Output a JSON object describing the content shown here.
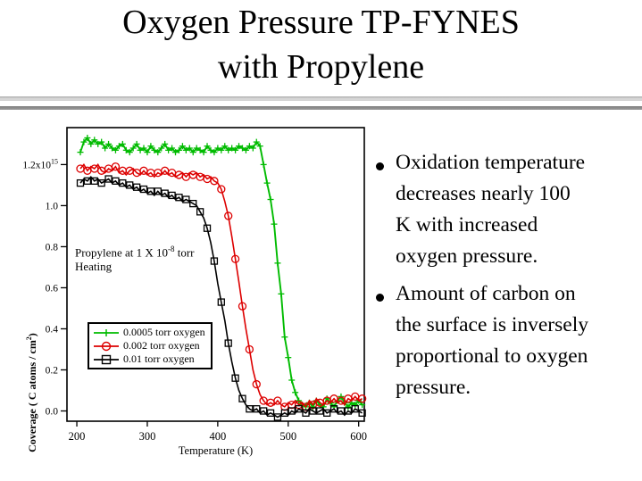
{
  "slide": {
    "title_line1": "Oxygen Pressure TP-FYNES",
    "title_line2": "with Propylene"
  },
  "bullets": [
    {
      "text": "Oxidation temperature\ndecreases nearly 100\nK with increased\noxygen pressure."
    },
    {
      "text": "Amount of carbon on\nthe surface is inversely\nproportional to oxygen\npressure."
    }
  ],
  "chart_data": {
    "type": "line",
    "xlabel": "Temperature (K)",
    "ylabel_base": "Coverage ( C atoms / cm",
    "ylabel_sup": "2",
    "ylabel_close": ")",
    "annotation_line1_base": "Propylene at 1 X 10",
    "annotation_line1_sup": "-8",
    "annotation_line1_tail": " torr",
    "annotation_line2": "Heating",
    "xlim": [
      186,
      608
    ],
    "ylim": [
      -0.05,
      1.38
    ],
    "x_ticks": [
      200,
      300,
      400,
      500,
      600
    ],
    "y_ticks": [
      0.0,
      0.2,
      0.4,
      0.6,
      0.8,
      1.0,
      1.2
    ],
    "y_top_tick_base": "1.2x10",
    "y_top_tick_sup": "15",
    "y_unit_scale": "1e15",
    "grid": false,
    "legend_position": "middle-left",
    "series": [
      {
        "name": "0.0005 torr oxygen",
        "color": "#00bb00",
        "marker": "plus",
        "marker_every": 1,
        "points": [
          [
            205,
            1.26
          ],
          [
            210,
            1.31
          ],
          [
            215,
            1.33
          ],
          [
            220,
            1.3
          ],
          [
            225,
            1.32
          ],
          [
            230,
            1.3
          ],
          [
            235,
            1.31
          ],
          [
            240,
            1.28
          ],
          [
            245,
            1.3
          ],
          [
            250,
            1.28
          ],
          [
            255,
            1.27
          ],
          [
            260,
            1.29
          ],
          [
            265,
            1.3
          ],
          [
            270,
            1.27
          ],
          [
            275,
            1.26
          ],
          [
            280,
            1.28
          ],
          [
            285,
            1.3
          ],
          [
            290,
            1.27
          ],
          [
            295,
            1.28
          ],
          [
            300,
            1.26
          ],
          [
            305,
            1.29
          ],
          [
            310,
            1.27
          ],
          [
            315,
            1.26
          ],
          [
            320,
            1.28
          ],
          [
            325,
            1.3
          ],
          [
            330,
            1.27
          ],
          [
            335,
            1.28
          ],
          [
            340,
            1.26
          ],
          [
            345,
            1.27
          ],
          [
            350,
            1.29
          ],
          [
            355,
            1.27
          ],
          [
            360,
            1.28
          ],
          [
            365,
            1.26
          ],
          [
            370,
            1.28
          ],
          [
            375,
            1.27
          ],
          [
            380,
            1.26
          ],
          [
            385,
            1.29
          ],
          [
            390,
            1.27
          ],
          [
            395,
            1.26
          ],
          [
            400,
            1.28
          ],
          [
            405,
            1.27
          ],
          [
            410,
            1.29
          ],
          [
            415,
            1.27
          ],
          [
            420,
            1.28
          ],
          [
            425,
            1.27
          ],
          [
            430,
            1.29
          ],
          [
            435,
            1.28
          ],
          [
            440,
            1.27
          ],
          [
            445,
            1.29
          ],
          [
            450,
            1.28
          ],
          [
            455,
            1.31
          ],
          [
            460,
            1.29
          ],
          [
            465,
            1.2
          ],
          [
            470,
            1.11
          ],
          [
            475,
            1.03
          ],
          [
            480,
            0.91
          ],
          [
            485,
            0.72
          ],
          [
            490,
            0.57
          ],
          [
            495,
            0.36
          ],
          [
            500,
            0.26
          ],
          [
            505,
            0.15
          ],
          [
            510,
            0.09
          ],
          [
            515,
            0.05
          ],
          [
            520,
            0.03
          ],
          [
            525,
            0.02
          ],
          [
            530,
            0.04
          ],
          [
            535,
            0.02
          ],
          [
            540,
            0.05
          ],
          [
            545,
            0.03
          ],
          [
            550,
            0.02
          ],
          [
            555,
            0.06
          ],
          [
            560,
            0.04
          ],
          [
            565,
            0.02
          ],
          [
            570,
            0.05
          ],
          [
            575,
            0.07
          ],
          [
            580,
            0.04
          ],
          [
            585,
            0.02
          ],
          [
            590,
            0.04
          ],
          [
            595,
            0.03
          ],
          [
            600,
            0.05
          ],
          [
            605,
            0.03
          ]
        ]
      },
      {
        "name": "0.002 torr oxygen",
        "color": "#dd0000",
        "marker": "circle",
        "marker_every": 2,
        "points": [
          [
            205,
            1.18
          ],
          [
            210,
            1.2
          ],
          [
            215,
            1.17
          ],
          [
            220,
            1.19
          ],
          [
            225,
            1.18
          ],
          [
            230,
            1.2
          ],
          [
            235,
            1.17
          ],
          [
            240,
            1.16
          ],
          [
            245,
            1.18
          ],
          [
            250,
            1.17
          ],
          [
            255,
            1.19
          ],
          [
            260,
            1.16
          ],
          [
            265,
            1.17
          ],
          [
            270,
            1.15
          ],
          [
            275,
            1.17
          ],
          [
            280,
            1.18
          ],
          [
            285,
            1.16
          ],
          [
            290,
            1.15
          ],
          [
            295,
            1.17
          ],
          [
            300,
            1.15
          ],
          [
            305,
            1.16
          ],
          [
            310,
            1.14
          ],
          [
            315,
            1.16
          ],
          [
            320,
            1.15
          ],
          [
            325,
            1.17
          ],
          [
            330,
            1.15
          ],
          [
            335,
            1.16
          ],
          [
            340,
            1.14
          ],
          [
            345,
            1.15
          ],
          [
            350,
            1.16
          ],
          [
            355,
            1.14
          ],
          [
            360,
            1.16
          ],
          [
            365,
            1.15
          ],
          [
            370,
            1.16
          ],
          [
            375,
            1.14
          ],
          [
            380,
            1.15
          ],
          [
            385,
            1.13
          ],
          [
            390,
            1.14
          ],
          [
            395,
            1.12
          ],
          [
            400,
            1.11
          ],
          [
            405,
            1.08
          ],
          [
            410,
            1.02
          ],
          [
            415,
            0.95
          ],
          [
            420,
            0.85
          ],
          [
            425,
            0.74
          ],
          [
            430,
            0.63
          ],
          [
            435,
            0.51
          ],
          [
            440,
            0.4
          ],
          [
            445,
            0.3
          ],
          [
            450,
            0.2
          ],
          [
            455,
            0.13
          ],
          [
            460,
            0.08
          ],
          [
            465,
            0.05
          ],
          [
            470,
            0.03
          ],
          [
            475,
            0.04
          ],
          [
            480,
            0.03
          ],
          [
            485,
            0.05
          ],
          [
            490,
            0.03
          ],
          [
            495,
            0.02
          ],
          [
            500,
            0.04
          ],
          [
            505,
            0.03
          ],
          [
            510,
            0.05
          ],
          [
            515,
            0.03
          ],
          [
            520,
            0.04
          ],
          [
            525,
            0.02
          ],
          [
            530,
            0.05
          ],
          [
            535,
            0.03
          ],
          [
            540,
            0.06
          ],
          [
            545,
            0.04
          ],
          [
            550,
            0.03
          ],
          [
            555,
            0.05
          ],
          [
            560,
            0.04
          ],
          [
            565,
            0.06
          ],
          [
            570,
            0.04
          ],
          [
            575,
            0.05
          ],
          [
            580,
            0.03
          ],
          [
            585,
            0.06
          ],
          [
            590,
            0.05
          ],
          [
            595,
            0.07
          ],
          [
            600,
            0.05
          ],
          [
            605,
            0.06
          ]
        ]
      },
      {
        "name": "0.01 torr oxygen",
        "color": "#000000",
        "marker": "square",
        "marker_every": 2,
        "points": [
          [
            205,
            1.11
          ],
          [
            210,
            1.13
          ],
          [
            215,
            1.12
          ],
          [
            220,
            1.14
          ],
          [
            225,
            1.12
          ],
          [
            230,
            1.13
          ],
          [
            235,
            1.11
          ],
          [
            240,
            1.12
          ],
          [
            245,
            1.13
          ],
          [
            250,
            1.11
          ],
          [
            255,
            1.12
          ],
          [
            260,
            1.1
          ],
          [
            265,
            1.11
          ],
          [
            270,
            1.09
          ],
          [
            275,
            1.1
          ],
          [
            280,
            1.08
          ],
          [
            285,
            1.09
          ],
          [
            290,
            1.07
          ],
          [
            295,
            1.08
          ],
          [
            300,
            1.06
          ],
          [
            305,
            1.07
          ],
          [
            310,
            1.05
          ],
          [
            315,
            1.07
          ],
          [
            320,
            1.05
          ],
          [
            325,
            1.06
          ],
          [
            330,
            1.04
          ],
          [
            335,
            1.05
          ],
          [
            340,
            1.03
          ],
          [
            345,
            1.04
          ],
          [
            350,
            1.02
          ],
          [
            355,
            1.03
          ],
          [
            360,
            1.02
          ],
          [
            365,
            1.01
          ],
          [
            370,
            1.0
          ],
          [
            375,
            0.97
          ],
          [
            380,
            0.94
          ],
          [
            385,
            0.89
          ],
          [
            390,
            0.82
          ],
          [
            395,
            0.73
          ],
          [
            400,
            0.62
          ],
          [
            405,
            0.53
          ],
          [
            410,
            0.44
          ],
          [
            415,
            0.33
          ],
          [
            420,
            0.24
          ],
          [
            425,
            0.16
          ],
          [
            430,
            0.1
          ],
          [
            435,
            0.06
          ],
          [
            440,
            0.03
          ],
          [
            445,
            0.01
          ],
          [
            450,
            0.0
          ],
          [
            455,
            0.01
          ],
          [
            460,
            -0.01
          ],
          [
            465,
            0.0
          ],
          [
            470,
            -0.02
          ],
          [
            475,
            -0.01
          ],
          [
            480,
            -0.02
          ],
          [
            485,
            -0.03
          ],
          [
            490,
            -0.02
          ],
          [
            495,
            -0.01
          ],
          [
            500,
            -0.02
          ],
          [
            505,
            0.0
          ],
          [
            510,
            -0.01
          ],
          [
            515,
            0.01
          ],
          [
            520,
            0.0
          ],
          [
            525,
            -0.01
          ],
          [
            530,
            0.01
          ],
          [
            535,
            0.0
          ],
          [
            540,
            -0.01
          ],
          [
            545,
            0.0
          ],
          [
            550,
            0.01
          ],
          [
            555,
            -0.01
          ],
          [
            560,
            0.0
          ],
          [
            565,
            0.01
          ],
          [
            570,
            -0.01
          ],
          [
            575,
            0.0
          ],
          [
            580,
            -0.02
          ],
          [
            585,
            0.0
          ],
          [
            590,
            -0.01
          ],
          [
            595,
            0.01
          ],
          [
            600,
            0.0
          ],
          [
            605,
            -0.01
          ]
        ]
      }
    ]
  }
}
